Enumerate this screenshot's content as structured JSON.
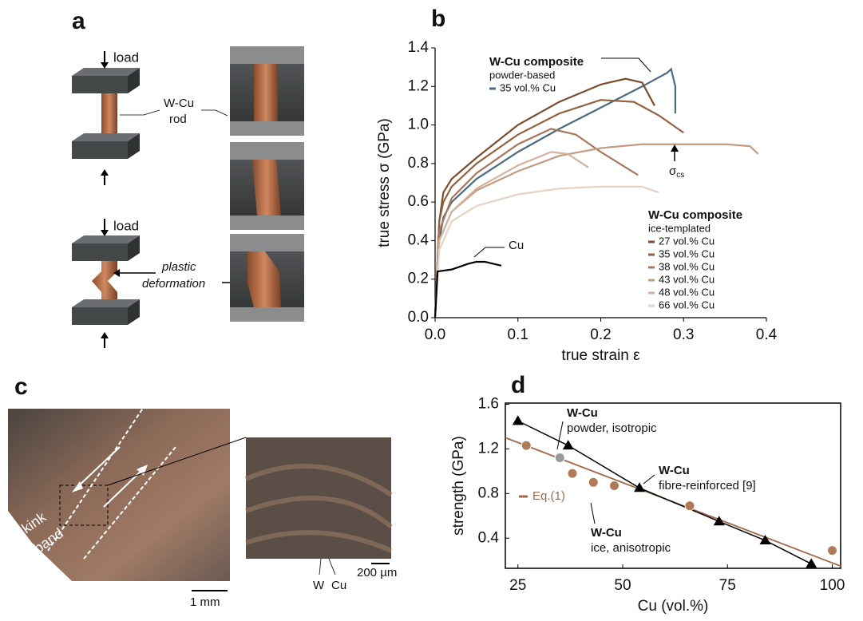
{
  "panels": {
    "a": {
      "label": "a",
      "load_top": "load",
      "rod_1": "W-Cu",
      "rod_2": "rod",
      "load_bottom": "load",
      "deform_1": "plastic",
      "deform_2": "deformation"
    },
    "c": {
      "label": "c",
      "kink_1": "kink",
      "kink_2": "band",
      "scale_1": "1 mm",
      "scale_2": "200 µm",
      "phase_1": "W",
      "phase_2": "Cu"
    }
  },
  "chart_data": [
    {
      "type": "line",
      "label": "b",
      "xlabel": "true strain ε",
      "ylabel": "true stress σ (GPa)",
      "xlim": [
        0,
        0.4
      ],
      "ylim": [
        0,
        1.4
      ],
      "xticks": [
        {
          "value": 0,
          "label": "0.0"
        },
        0.1,
        0.2,
        0.3,
        0.4
      ],
      "yticks": [
        {
          "value": 0,
          "label": "0.0"
        },
        0.2,
        0.4,
        0.6,
        0.8,
        {
          "value": 1,
          "label": "1.0"
        },
        1.2,
        1.4
      ],
      "legends": [
        {
          "title": "W-Cu composite",
          "subtitle": "powder-based"
        },
        {
          "title": "W-Cu composite",
          "subtitle": "ice-templated"
        }
      ],
      "annotation": {
        "text": "σ",
        "sub": "cs"
      },
      "series": [
        {
          "name": "35 vol.% Cu",
          "color": "#4a6b85",
          "legend_group": 0,
          "x": [
            0,
            0.005,
            0.01,
            0.02,
            0.05,
            0.1,
            0.15,
            0.2,
            0.25,
            0.28,
            0.285,
            0.29,
            0.29
          ],
          "values": [
            0,
            0.4,
            0.52,
            0.6,
            0.72,
            0.86,
            0.98,
            1.09,
            1.2,
            1.27,
            1.29,
            1.2,
            1.06
          ]
        },
        {
          "name": "27 vol.% Cu",
          "color": "#7d4b2c",
          "legend_group": 1,
          "x": [
            0,
            0.005,
            0.01,
            0.02,
            0.05,
            0.1,
            0.15,
            0.2,
            0.23,
            0.25,
            0.265
          ],
          "values": [
            0,
            0.5,
            0.65,
            0.72,
            0.83,
            1.0,
            1.12,
            1.21,
            1.24,
            1.22,
            1.1
          ]
        },
        {
          "name": "35 vol.% Cu",
          "color": "#95603d",
          "legend_group": 1,
          "x": [
            0,
            0.005,
            0.01,
            0.02,
            0.05,
            0.1,
            0.15,
            0.2,
            0.24,
            0.27,
            0.3
          ],
          "values": [
            0,
            0.5,
            0.6,
            0.68,
            0.8,
            0.95,
            1.06,
            1.13,
            1.12,
            1.05,
            0.96
          ]
        },
        {
          "name": "38 vol.% Cu",
          "color": "#a8765a",
          "legend_group": 1,
          "x": [
            0,
            0.005,
            0.02,
            0.05,
            0.1,
            0.14,
            0.17,
            0.2,
            0.23,
            0.245
          ],
          "values": [
            0,
            0.45,
            0.62,
            0.75,
            0.9,
            0.98,
            0.95,
            0.86,
            0.78,
            0.74
          ]
        },
        {
          "name": "43 vol.% Cu",
          "color": "#c49a80",
          "legend_group": 1,
          "x": [
            0,
            0.005,
            0.02,
            0.05,
            0.1,
            0.15,
            0.2,
            0.25,
            0.3,
            0.35,
            0.38,
            0.39
          ],
          "values": [
            0,
            0.4,
            0.55,
            0.66,
            0.76,
            0.84,
            0.88,
            0.9,
            0.9,
            0.9,
            0.89,
            0.85
          ]
        },
        {
          "name": "48 vol.% Cu",
          "color": "#d4b39e",
          "legend_group": 1,
          "x": [
            0,
            0.005,
            0.02,
            0.05,
            0.1,
            0.14,
            0.16,
            0.185
          ],
          "values": [
            0,
            0.4,
            0.55,
            0.67,
            0.79,
            0.86,
            0.85,
            0.78
          ]
        },
        {
          "name": "66 vol.% Cu",
          "color": "#e6d3c4",
          "legend_group": 1,
          "x": [
            0,
            0.005,
            0.02,
            0.05,
            0.1,
            0.15,
            0.2,
            0.25,
            0.27
          ],
          "values": [
            0,
            0.35,
            0.5,
            0.58,
            0.64,
            0.67,
            0.68,
            0.68,
            0.65
          ]
        },
        {
          "name": "Cu",
          "color": "#000000",
          "x": [
            0,
            0.003,
            0.02,
            0.04,
            0.05,
            0.06,
            0.08
          ],
          "values": [
            0,
            0.24,
            0.25,
            0.28,
            0.29,
            0.29,
            0.27
          ]
        }
      ]
    },
    {
      "type": "scatter",
      "label": "d",
      "xlabel": "Cu (vol.%)",
      "ylabel": "strength (GPa)",
      "xlim": [
        22,
        102
      ],
      "ylim": [
        0.13,
        1.61
      ],
      "xticks": [
        25,
        50,
        75,
        100
      ],
      "yticks": [
        0.4,
        0.8,
        1.2,
        1.6
      ],
      "series": [
        {
          "name": "Eq.(1)",
          "color": "#a0694a",
          "marker": "none",
          "x": [
            22,
            102
          ],
          "values": [
            1.3,
            0.15
          ]
        },
        {
          "name": "fibre-reinforced [9]",
          "title": "W-Cu",
          "color": "#000000",
          "marker": "triangle",
          "x": [
            25,
            37,
            54,
            73,
            84,
            95
          ],
          "values": [
            1.45,
            1.23,
            0.85,
            0.55,
            0.38,
            0.17
          ]
        },
        {
          "name": "ice, anisotropic",
          "title": "W-Cu",
          "color": "#b07a56",
          "marker": "circle",
          "x": [
            27,
            38,
            43,
            48,
            66,
            100
          ],
          "values": [
            1.23,
            0.98,
            0.9,
            0.87,
            0.69,
            0.29
          ]
        },
        {
          "name": "powder, isotropic",
          "title": "W-Cu",
          "color": "#9a9a9a",
          "marker": "circle",
          "x": [
            35
          ],
          "values": [
            1.12
          ]
        }
      ]
    }
  ]
}
